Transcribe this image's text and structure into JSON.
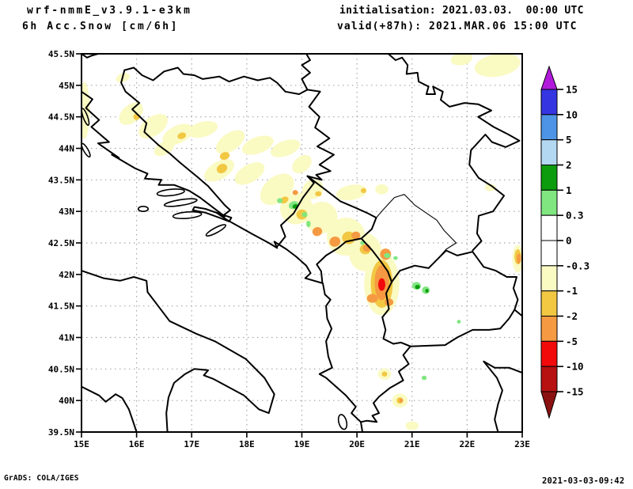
{
  "header": {
    "model": "wrf-nmmE_v3.9.1-e3km",
    "product": "6h Acc.Snow [cm/6h]",
    "init": "initialisation: 2021.03.03.  00:00 UTC",
    "valid": "valid(+87h): 2021.MAR.06 15:00 UTC"
  },
  "footer": {
    "credit": "GrADS: COLA/IGES",
    "created": "2021-03-03-09:42"
  },
  "map": {
    "lon_min": 15,
    "lon_max": 23,
    "lat_min": 39.5,
    "lat_max": 45.5,
    "x_tick_labels": [
      "15E",
      "16E",
      "17E",
      "18E",
      "19E",
      "20E",
      "21E",
      "22E",
      "23E"
    ],
    "y_tick_labels": [
      "45.5N",
      "45N",
      "44.5N",
      "44N",
      "43.5N",
      "43N",
      "42.5N",
      "42N",
      "41.5N",
      "41N",
      "40.5N",
      "40N",
      "39.5N"
    ],
    "grid_color": "#a6a6a6",
    "frame_color": "#000000"
  },
  "colorbar": {
    "labels": [
      "15",
      "10",
      "5",
      "2",
      "1",
      "0.3",
      "0",
      "-0.3",
      "-1",
      "-2",
      "-5",
      "-10",
      "-15"
    ],
    "segment_colors": [
      "#3535e2",
      "#4d94e6",
      "#b3d9f2",
      "#0d9c0d",
      "#80e680",
      "#ffffff",
      "#ffffff",
      "#fafac3",
      "#f2c843",
      "#f59a42",
      "#f20a0a",
      "#b81111"
    ],
    "arrow_top_color": "#b21adb",
    "arrow_bottom_color": "#8c1212"
  },
  "chart_data": {
    "type": "heatmap",
    "title": "6h Acc.Snow [cm/6h]",
    "units": "cm/6h",
    "region": {
      "lon": [
        15,
        23
      ],
      "lat": [
        39.5,
        45.5
      ]
    },
    "levels": [
      -15,
      -10,
      -5,
      -2,
      -1,
      -0.3,
      0,
      0.3,
      1,
      2,
      5,
      10,
      15
    ],
    "legend_position": "right",
    "grid": "dotted, 1 deg lon x 0.5 deg lat",
    "shaded_regions": [
      {
        "level": "-0.3 to -1",
        "color": "#fafac3",
        "blobs": [
          [
            15.05,
            44.6,
            0.1,
            0.45,
            0
          ],
          [
            15.75,
            45.12,
            0.13,
            0.07,
            -20
          ],
          [
            15.9,
            44.55,
            0.25,
            0.14,
            -40
          ],
          [
            16.3,
            44.35,
            0.3,
            0.15,
            -35
          ],
          [
            16.75,
            44.22,
            0.3,
            0.14,
            -25
          ],
          [
            17.2,
            44.3,
            0.28,
            0.12,
            -15
          ],
          [
            17.7,
            44.1,
            0.3,
            0.14,
            -35
          ],
          [
            18.2,
            44.05,
            0.3,
            0.13,
            -20
          ],
          [
            18.7,
            44.0,
            0.28,
            0.12,
            -20
          ],
          [
            19.0,
            43.75,
            0.2,
            0.12,
            -40
          ],
          [
            16.5,
            44.0,
            0.2,
            0.1,
            -30
          ],
          [
            17.5,
            43.65,
            0.3,
            0.14,
            -30
          ],
          [
            18.05,
            43.6,
            0.3,
            0.14,
            -30
          ],
          [
            18.55,
            43.35,
            0.35,
            0.2,
            -40
          ],
          [
            18.9,
            43.05,
            0.3,
            0.25,
            -40
          ],
          [
            19.35,
            42.9,
            0.3,
            0.25,
            -30
          ],
          [
            19.8,
            42.6,
            0.35,
            0.3,
            -30
          ],
          [
            20.15,
            42.35,
            0.3,
            0.3,
            0
          ],
          [
            20.45,
            41.85,
            0.32,
            0.5,
            0
          ],
          [
            19.9,
            43.3,
            0.28,
            0.12,
            -10
          ],
          [
            20.45,
            43.35,
            0.12,
            0.08,
            0
          ],
          [
            19.2,
            43.35,
            0.2,
            0.15,
            -30
          ],
          [
            22.42,
            43.38,
            0.1,
            0.06,
            0
          ],
          [
            22.55,
            45.32,
            0.42,
            0.18,
            -10
          ],
          [
            21.9,
            45.42,
            0.2,
            0.1,
            -10
          ],
          [
            22.92,
            42.25,
            0.1,
            0.22,
            0
          ],
          [
            20.5,
            40.42,
            0.12,
            0.09,
            0
          ],
          [
            20.78,
            40.0,
            0.14,
            0.11,
            0
          ],
          [
            21.0,
            39.6,
            0.12,
            0.07,
            0
          ]
        ]
      },
      {
        "level": "-1 to -2",
        "color": "#f2c843",
        "blobs": [
          [
            16.0,
            44.5,
            0.06,
            0.05,
            0
          ],
          [
            16.82,
            44.2,
            0.08,
            0.05,
            -20
          ],
          [
            17.6,
            43.88,
            0.09,
            0.06,
            -20
          ],
          [
            17.55,
            43.68,
            0.1,
            0.07,
            -30
          ],
          [
            18.68,
            43.18,
            0.08,
            0.05,
            -30
          ],
          [
            19.0,
            42.95,
            0.1,
            0.08,
            0
          ],
          [
            19.85,
            42.58,
            0.12,
            0.1,
            0
          ],
          [
            20.15,
            42.4,
            0.1,
            0.08,
            0
          ],
          [
            20.45,
            41.85,
            0.2,
            0.38,
            0
          ],
          [
            20.12,
            43.33,
            0.05,
            0.04,
            0
          ],
          [
            22.92,
            42.28,
            0.06,
            0.12,
            0
          ],
          [
            20.78,
            40.0,
            0.06,
            0.05,
            0
          ],
          [
            20.5,
            40.42,
            0.05,
            0.04,
            0
          ],
          [
            19.3,
            43.28,
            0.06,
            0.04,
            0
          ]
        ]
      },
      {
        "level": "-2 to -5",
        "color": "#f59a42",
        "blobs": [
          [
            18.88,
            43.3,
            0.05,
            0.04,
            0
          ],
          [
            19.28,
            42.68,
            0.09,
            0.07,
            -20
          ],
          [
            19.6,
            42.52,
            0.1,
            0.08,
            -20
          ],
          [
            19.98,
            42.62,
            0.08,
            0.06,
            0
          ],
          [
            20.18,
            42.42,
            0.07,
            0.06,
            0
          ],
          [
            20.52,
            42.32,
            0.1,
            0.09,
            0
          ],
          [
            20.45,
            41.87,
            0.13,
            0.28,
            0
          ],
          [
            20.28,
            41.62,
            0.1,
            0.07,
            0
          ],
          [
            20.58,
            41.56,
            0.08,
            0.06,
            0
          ],
          [
            22.94,
            42.25,
            0.04,
            0.08,
            0
          ],
          [
            20.8,
            40.0,
            0.035,
            0.03,
            0
          ]
        ]
      },
      {
        "level": "-5 to -10",
        "color": "#f20a0a",
        "blobs": [
          [
            20.45,
            41.84,
            0.065,
            0.1,
            0
          ]
        ]
      },
      {
        "level": "0.3 to 1",
        "color": "#80e680",
        "blobs": [
          [
            18.6,
            43.17,
            0.05,
            0.04,
            0
          ],
          [
            18.85,
            43.1,
            0.09,
            0.06,
            -20
          ],
          [
            19.05,
            42.95,
            0.05,
            0.04,
            0
          ],
          [
            19.12,
            42.8,
            0.04,
            0.05,
            0
          ],
          [
            20.55,
            42.3,
            0.06,
            0.04,
            0
          ],
          [
            20.7,
            42.26,
            0.04,
            0.03,
            0
          ],
          [
            21.08,
            41.82,
            0.08,
            0.06,
            0
          ],
          [
            21.25,
            41.75,
            0.07,
            0.06,
            0
          ],
          [
            21.85,
            41.25,
            0.035,
            0.03,
            0
          ],
          [
            21.22,
            40.36,
            0.045,
            0.035,
            0
          ],
          [
            20.1,
            42.5,
            0.04,
            0.03,
            0
          ]
        ]
      },
      {
        "level": "1 to 2",
        "color": "#0d9c0d",
        "blobs": [
          [
            18.88,
            43.08,
            0.05,
            0.035,
            -20
          ],
          [
            21.1,
            41.8,
            0.045,
            0.035,
            0
          ],
          [
            21.27,
            41.74,
            0.03,
            0.03,
            0
          ]
        ]
      }
    ]
  }
}
